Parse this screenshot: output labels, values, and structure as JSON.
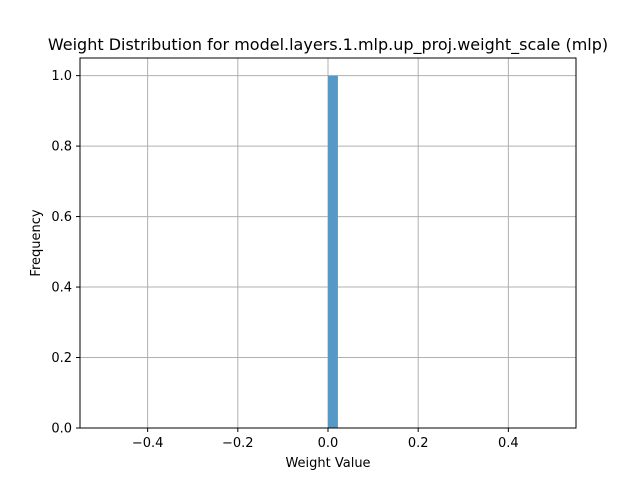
{
  "chart_data": {
    "type": "bar",
    "title": "Weight Distribution for model.layers.1.mlp.up_proj.weight_scale (mlp)",
    "xlabel": "Weight Value",
    "ylabel": "Frequency",
    "xlim": [
      -0.55,
      0.55
    ],
    "ylim": [
      0,
      1.05
    ],
    "xticks": [
      -0.4,
      -0.2,
      0.0,
      0.2,
      0.4
    ],
    "xtick_labels": [
      "−0.4",
      "−0.2",
      "0.0",
      "0.2",
      "0.4"
    ],
    "yticks": [
      0.0,
      0.2,
      0.4,
      0.6,
      0.8,
      1.0
    ],
    "ytick_labels": [
      "0.0",
      "0.2",
      "0.4",
      "0.6",
      "0.8",
      "1.0"
    ],
    "grid": true,
    "bar_color": "#5799c6",
    "bins": [
      {
        "x0": 0.0,
        "x1": 0.022,
        "value": 1
      }
    ]
  }
}
